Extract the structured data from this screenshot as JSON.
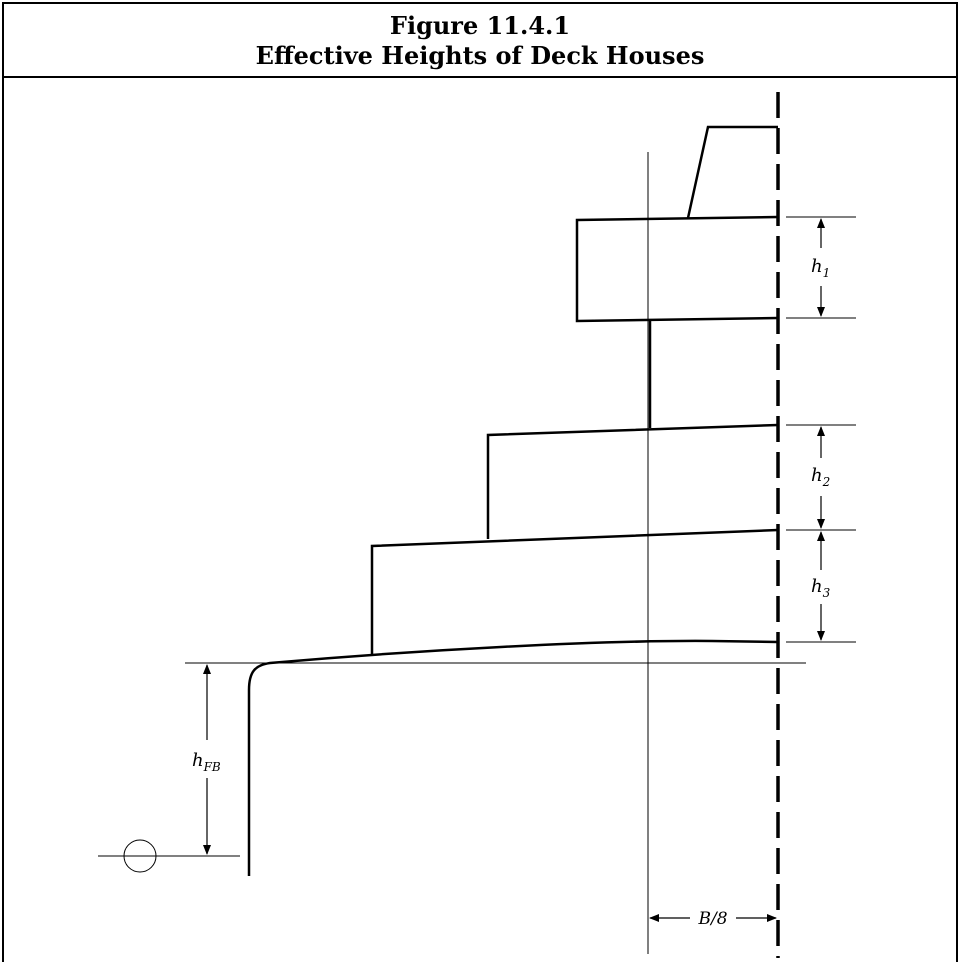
{
  "figure": {
    "number": "Figure 11.4.1",
    "title": "Effective Heights of Deck Houses"
  },
  "labels": {
    "h1": {
      "base": "h",
      "sub": "1"
    },
    "h2": {
      "base": "h",
      "sub": "2"
    },
    "h3": {
      "base": "h",
      "sub": "3"
    },
    "hfb": {
      "base": "h",
      "sub": "FB"
    },
    "beam_fraction": "B/8"
  },
  "icons": {
    "waterline": "waterline-symbol-icon"
  }
}
